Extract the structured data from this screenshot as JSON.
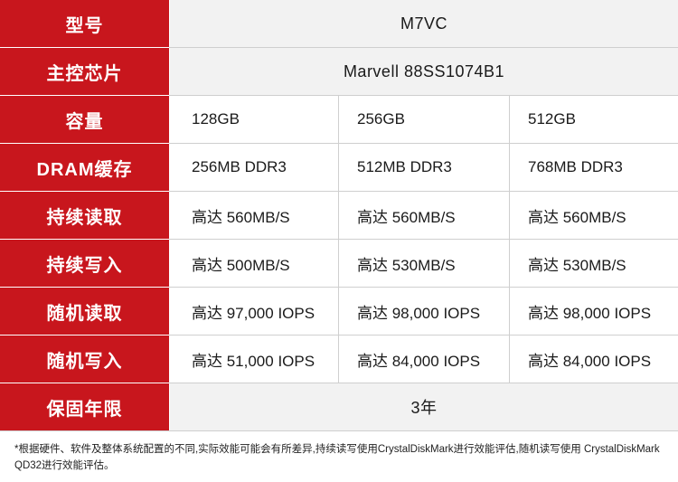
{
  "table": {
    "rows": [
      {
        "label": "型号",
        "span": "M7VC"
      },
      {
        "label": "主控芯片",
        "span": "Marvell 88SS1074B1"
      },
      {
        "label": "容量",
        "cells": [
          "128GB",
          "256GB",
          "512GB"
        ]
      },
      {
        "label": "DRAM缓存",
        "cells": [
          "256MB DDR3",
          "512MB DDR3",
          "768MB DDR3"
        ]
      },
      {
        "label": "持续读取",
        "cells": [
          "高达 560MB/S",
          "高达 560MB/S",
          "高达 560MB/S"
        ]
      },
      {
        "label": "持续写入",
        "cells": [
          "高达 500MB/S",
          "高达 530MB/S",
          "高达 530MB/S"
        ]
      },
      {
        "label": "随机读取",
        "cells": [
          "高达 97,000 IOPS",
          "高达 98,000 IOPS",
          "高达 98,000 IOPS"
        ]
      },
      {
        "label": "随机写入",
        "cells": [
          "高达 51,000 IOPS",
          "高达 84,000 IOPS",
          "高达 84,000 IOPS"
        ]
      },
      {
        "label": "保固年限",
        "span": "3年"
      }
    ]
  },
  "footnote": "*根据硬件、软件及整体系统配置的不同,实际效能可能会有所差异,持续读写使用CrystalDiskMark进行效能评估,随机读写使用 CrystalDiskMark QD32进行效能评估。",
  "colors": {
    "label_bg": "#c8161d",
    "span_bg": "#f2f2f2",
    "border": "#cfcfcf"
  }
}
